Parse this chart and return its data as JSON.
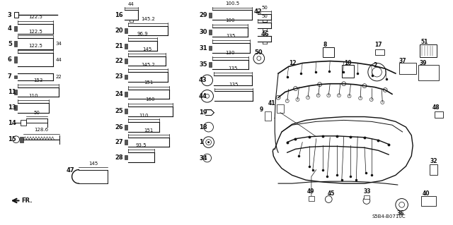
{
  "bg_color": "#ffffff",
  "fig_width": 6.4,
  "fig_height": 3.19,
  "dpi": 100,
  "watermark": "S5B4-B0710C",
  "text_color": "#111111",
  "line_color": "#111111"
}
